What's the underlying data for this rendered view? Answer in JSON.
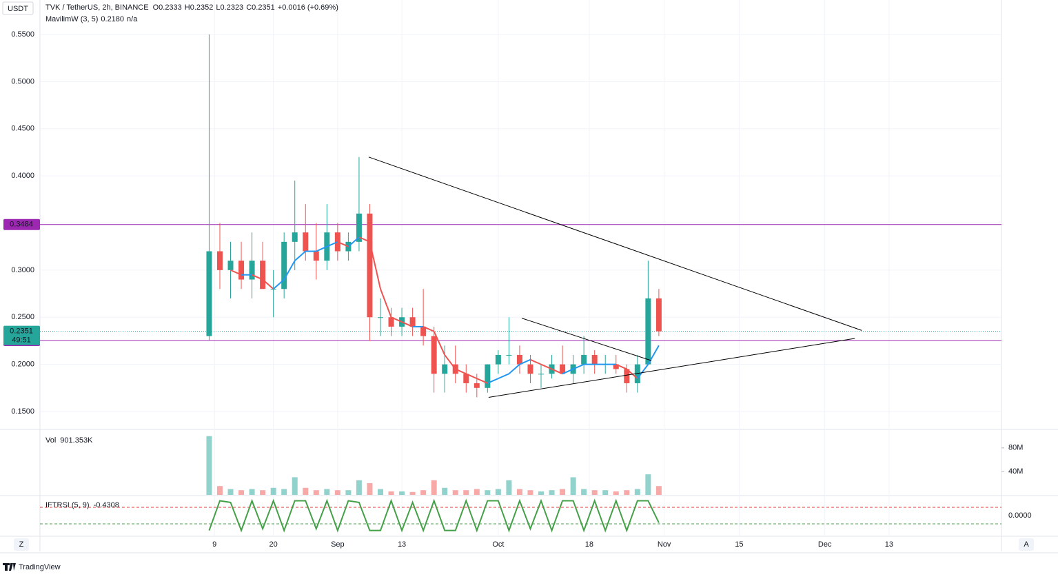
{
  "chart_data": {
    "type": "candlestick",
    "currency": "USDT",
    "title": "TVK / TetherUS, 2h, BINANCE",
    "ohlc_legend": [
      {
        "label": "O",
        "value": "0.2333"
      },
      {
        "label": "H",
        "value": "0.2352"
      },
      {
        "label": "L",
        "value": "0.2323"
      },
      {
        "label": "C",
        "value": "0.2351"
      }
    ],
    "change": "+0.0016 (+0.69%)",
    "up_color": "#26a69a",
    "down_color": "#ef5350",
    "x": [
      8,
      10,
      12,
      14,
      16,
      18,
      20,
      22,
      24,
      26,
      28,
      30,
      32,
      34,
      36,
      38,
      40,
      42,
      44,
      46,
      48,
      50,
      52,
      54,
      56,
      58,
      60,
      62,
      64,
      66,
      68,
      70,
      72,
      74,
      76,
      78,
      80,
      82,
      84,
      86,
      88,
      90,
      92
    ],
    "open": [
      0.23,
      0.32,
      0.3,
      0.31,
      0.29,
      0.31,
      0.28,
      0.28,
      0.33,
      0.34,
      0.32,
      0.31,
      0.34,
      0.32,
      0.33,
      0.36,
      0.25,
      0.25,
      0.24,
      0.25,
      0.24,
      0.23,
      0.19,
      0.2,
      0.19,
      0.18,
      0.175,
      0.2,
      0.21,
      0.21,
      0.2,
      0.19,
      0.19,
      0.2,
      0.19,
      0.2,
      0.21,
      0.2,
      0.2,
      0.195,
      0.18,
      0.2,
      0.27
    ],
    "high": [
      0.55,
      0.35,
      0.33,
      0.33,
      0.34,
      0.33,
      0.3,
      0.34,
      0.395,
      0.37,
      0.35,
      0.37,
      0.35,
      0.34,
      0.42,
      0.37,
      0.27,
      0.26,
      0.26,
      0.26,
      0.28,
      0.24,
      0.22,
      0.22,
      0.2,
      0.19,
      0.2,
      0.215,
      0.25,
      0.22,
      0.21,
      0.2,
      0.21,
      0.22,
      0.21,
      0.23,
      0.215,
      0.21,
      0.21,
      0.2,
      0.21,
      0.31,
      0.28
    ],
    "low": [
      0.225,
      0.28,
      0.27,
      0.28,
      0.27,
      0.28,
      0.25,
      0.27,
      0.3,
      0.31,
      0.29,
      0.3,
      0.31,
      0.31,
      0.32,
      0.225,
      0.23,
      0.23,
      0.23,
      0.23,
      0.22,
      0.17,
      0.17,
      0.18,
      0.17,
      0.165,
      0.17,
      0.19,
      0.2,
      0.19,
      0.18,
      0.175,
      0.185,
      0.19,
      0.18,
      0.19,
      0.19,
      0.19,
      0.19,
      0.17,
      0.17,
      0.2,
      0.23
    ],
    "close": [
      0.32,
      0.3,
      0.31,
      0.29,
      0.31,
      0.28,
      0.28,
      0.33,
      0.34,
      0.32,
      0.31,
      0.34,
      0.32,
      0.33,
      0.36,
      0.25,
      0.25,
      0.24,
      0.25,
      0.24,
      0.23,
      0.19,
      0.2,
      0.19,
      0.18,
      0.175,
      0.2,
      0.21,
      0.21,
      0.2,
      0.19,
      0.19,
      0.2,
      0.19,
      0.2,
      0.21,
      0.2,
      0.2,
      0.195,
      0.18,
      0.2,
      0.27,
      0.235
    ],
    "ma": {
      "name": "MavilimW (3, 5)",
      "value": "0.2180",
      "extra": "n/a",
      "up_color": "#2196f3",
      "down_color": "#ef5350",
      "values": [
        null,
        null,
        0.3,
        0.295,
        0.295,
        0.29,
        0.28,
        0.29,
        0.31,
        0.32,
        0.32,
        0.325,
        0.33,
        0.325,
        0.335,
        0.33,
        0.28,
        0.25,
        0.245,
        0.24,
        0.24,
        0.235,
        0.21,
        0.195,
        0.19,
        0.185,
        0.18,
        0.185,
        0.19,
        0.2,
        0.205,
        0.2,
        0.195,
        0.19,
        0.195,
        0.2,
        0.2,
        0.2,
        0.2,
        0.195,
        0.185,
        0.2,
        0.22
      ]
    },
    "price_lines": [
      {
        "value": 0.3484,
        "color": "#9c27b0"
      },
      {
        "value": 0.2253,
        "color": "#9c27b0"
      }
    ],
    "last_price": {
      "value": 0.2351,
      "countdown": "49:51"
    },
    "trendlines": [
      {
        "x": [
          37.8,
          129.9
        ],
        "y": [
          0.42,
          0.236
        ]
      },
      {
        "x": [
          60.2,
          128.6
        ],
        "y": [
          0.165,
          0.2275
        ]
      },
      {
        "x": [
          66.4,
          90.6
        ],
        "y": [
          0.249,
          0.204
        ]
      }
    ],
    "xlim": [
      -23.6,
      156
    ],
    "xticks": [
      {
        "value": 9,
        "label": "9"
      },
      {
        "value": 20,
        "label": "20"
      },
      {
        "value": 32,
        "label": "Sep"
      },
      {
        "value": 44,
        "label": "13"
      },
      {
        "value": 62,
        "label": "Oct"
      },
      {
        "value": 79,
        "label": "18"
      },
      {
        "value": 93,
        "label": "Nov"
      },
      {
        "value": 107,
        "label": "15"
      },
      {
        "value": 123,
        "label": "Dec"
      },
      {
        "value": 135,
        "label": "13"
      }
    ],
    "ylim": [
      0.1317,
      0.5866
    ],
    "yticks": [
      {
        "value": 0.15,
        "label": "0.1500"
      },
      {
        "value": 0.2,
        "label": "0.2000"
      },
      {
        "value": 0.25,
        "label": "0.2500"
      },
      {
        "value": 0.3,
        "label": "0.3000"
      },
      {
        "value": 0.35,
        "label": "0.3500"
      },
      {
        "value": 0.4,
        "label": "0.4000"
      },
      {
        "value": 0.45,
        "label": "0.4500"
      },
      {
        "value": 0.5,
        "label": "0.5000"
      },
      {
        "value": 0.55,
        "label": "0.5500"
      }
    ],
    "volume": {
      "name": "Vol",
      "value": "901.353K",
      "ylim": [
        0,
        109
      ],
      "yticks": [
        {
          "value": 40,
          "label": "40M"
        },
        {
          "value": 80,
          "label": "80M"
        }
      ],
      "values": [
        100,
        15,
        10,
        8,
        10,
        8,
        12,
        10,
        30,
        12,
        8,
        10,
        8,
        8,
        25,
        20,
        10,
        6,
        6,
        5,
        8,
        25,
        12,
        8,
        8,
        10,
        8,
        10,
        25,
        10,
        8,
        6,
        8,
        10,
        30,
        10,
        8,
        8,
        6,
        8,
        10,
        35,
        15
      ]
    },
    "oscillator": {
      "name": "IFTRSI (5, 9)",
      "value": -0.4308,
      "color": "#43a047",
      "ylim": [
        -1.25,
        1.17
      ],
      "yticks": [
        {
          "value": 0,
          "label": "0.0000"
        }
      ],
      "levels": [
        {
          "value": 0.5,
          "color": "#e53935"
        },
        {
          "value": -0.5,
          "color": "#43a047"
        }
      ],
      "values": [
        -0.9,
        0.9,
        0.8,
        -0.9,
        0.9,
        -0.8,
        0.9,
        -0.9,
        0.9,
        0.9,
        -0.8,
        0.9,
        -0.9,
        0.9,
        0.8,
        -0.9,
        -0.9,
        0.9,
        -0.9,
        0.8,
        -0.9,
        0.9,
        -0.9,
        -0.9,
        0.9,
        -0.9,
        0.9,
        0.9,
        -0.9,
        0.9,
        -0.8,
        0.9,
        -0.9,
        0.9,
        0.9,
        -0.9,
        0.9,
        -0.9,
        0.9,
        -0.9,
        0.9,
        0.9,
        -0.43
      ]
    },
    "scale_buttons": [
      "Z",
      "A"
    ],
    "brand": "TradingView"
  }
}
